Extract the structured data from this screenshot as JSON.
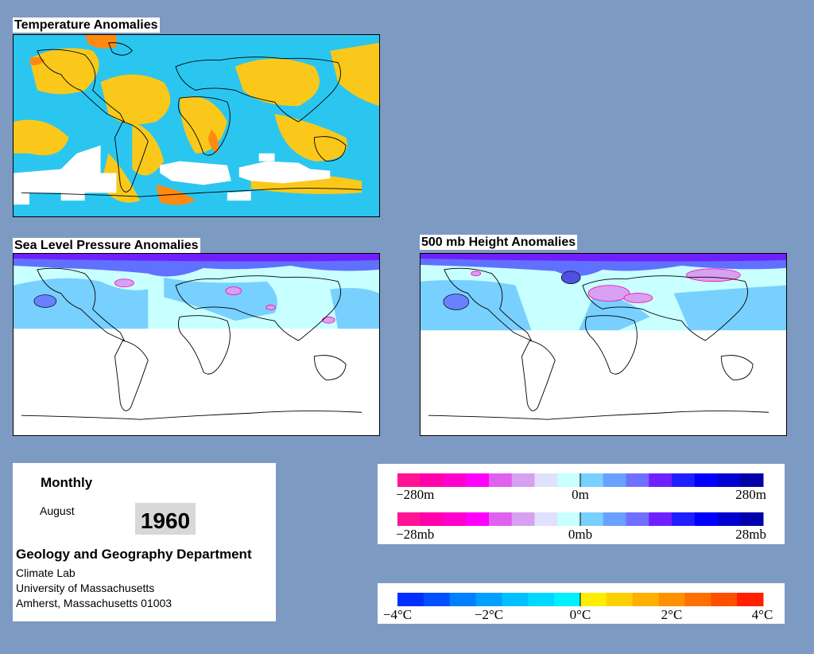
{
  "maps": {
    "temperature": {
      "title": "Temperature Anomalies"
    },
    "slp": {
      "title": "Sea Level Pressure Anomalies"
    },
    "height500": {
      "title": "500 mb Height Anomalies"
    }
  },
  "info": {
    "period": "Monthly",
    "month": "August",
    "year": "1960",
    "department": "Geology and Geography Department",
    "lab": "Climate Lab",
    "university": "University of Massachusetts",
    "address": "Amherst, Massachusetts 01003"
  },
  "legend_height": {
    "labels": [
      "−280m",
      "0m",
      "280m"
    ],
    "colors": [
      "#ff1493",
      "#ff00aa",
      "#ff00cc",
      "#ff00ff",
      "#e060f0",
      "#d8a0f0",
      "#e0e0ff",
      "#c8ffff",
      "#78d0ff",
      "#6aa0ff",
      "#7070ff",
      "#7020ff",
      "#2020ff",
      "#0000ff",
      "#0000d0",
      "#0000aa"
    ]
  },
  "legend_pressure": {
    "labels": [
      "−28mb",
      "0mb",
      "28mb"
    ],
    "colors": [
      "#ff1493",
      "#ff00aa",
      "#ff00cc",
      "#ff00ff",
      "#e060f0",
      "#d8a0f0",
      "#e0e0ff",
      "#c8ffff",
      "#78d0ff",
      "#6aa0ff",
      "#7070ff",
      "#7020ff",
      "#2020ff",
      "#0000ff",
      "#0000d0",
      "#0000aa"
    ]
  },
  "legend_temperature": {
    "labels": [
      "−4°C",
      "−2°C",
      "0°C",
      "2°C",
      "4°C"
    ],
    "colors": [
      "#0030ff",
      "#0050ff",
      "#0080ff",
      "#00a0ff",
      "#00c0ff",
      "#00d8ff",
      "#00f0ff",
      "#ffee00",
      "#ffd000",
      "#ffb000",
      "#ff9000",
      "#ff7000",
      "#ff5000",
      "#ff2000"
    ]
  }
}
